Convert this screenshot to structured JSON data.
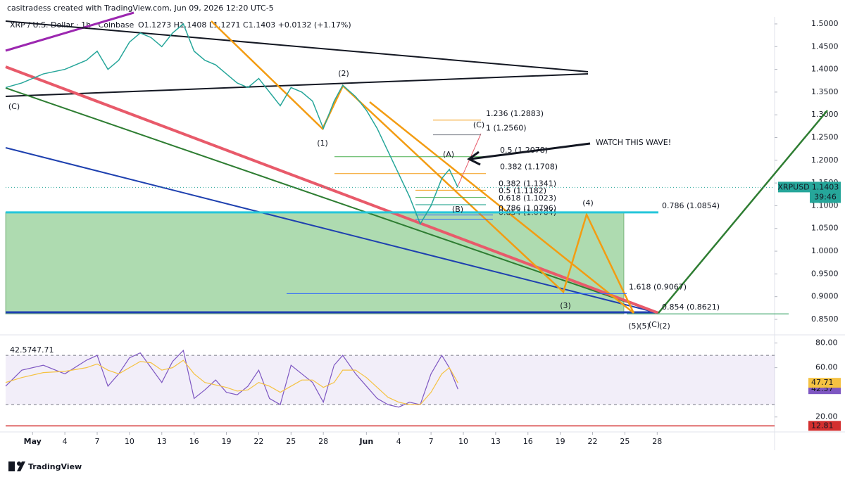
{
  "header": "casitradess created with TradingView.com, Jun 09, 2026 12:20 UTC-5",
  "footer_logo": "TradingView",
  "chart_data": [
    {
      "type": "line",
      "title": "XRP / U.S. Dollar · 1h · Coinbase",
      "ohlc": "O1.1273 H1.1408 L1.1271 C1.1403 +0.0132 (+1.17%)",
      "x": [
        -2.5,
        -1,
        1,
        3,
        5,
        6,
        7,
        8,
        9,
        10,
        11,
        12,
        13,
        14,
        15,
        16,
        17,
        18,
        19,
        20,
        21,
        22,
        23,
        24,
        25,
        26,
        27,
        28,
        28.8,
        30,
        31,
        32,
        33,
        34,
        35,
        36,
        37,
        38,
        38.7,
        39.5
      ],
      "xlim": [
        -2.5,
        68.9
      ],
      "xticks": [
        {
          "value": 0,
          "label": "May"
        },
        {
          "value": 3,
          "label": "4"
        },
        {
          "value": 6,
          "label": "7"
        },
        {
          "value": 9,
          "label": "10"
        },
        {
          "value": 12,
          "label": "13"
        },
        {
          "value": 15,
          "label": "16"
        },
        {
          "value": 18,
          "label": "19"
        },
        {
          "value": 21,
          "label": "22"
        },
        {
          "value": 24,
          "label": "25"
        },
        {
          "value": 27,
          "label": "28"
        },
        {
          "value": 31,
          "label": "Jun"
        },
        {
          "value": 34,
          "label": "4"
        },
        {
          "value": 37,
          "label": "7"
        },
        {
          "value": 40,
          "label": "10"
        },
        {
          "value": 43,
          "label": "13"
        },
        {
          "value": 46,
          "label": "16"
        },
        {
          "value": 49,
          "label": "19"
        },
        {
          "value": 52,
          "label": "22"
        },
        {
          "value": 55,
          "label": "25"
        },
        {
          "value": 58,
          "label": "28"
        }
      ],
      "ylim": [
        0.8252,
        1.5402
      ],
      "yticks": [
        {
          "value": 1.5,
          "label": "1.5000"
        },
        {
          "value": 1.45,
          "label": "1.4500"
        },
        {
          "value": 1.4,
          "label": "1.4000"
        },
        {
          "value": 1.35,
          "label": "1.3500"
        },
        {
          "value": 1.3,
          "label": "1.3000"
        },
        {
          "value": 1.25,
          "label": "1.2500"
        },
        {
          "value": 1.2,
          "label": "1.2000"
        },
        {
          "value": 1.15,
          "label": "1.1500"
        },
        {
          "value": 1.1,
          "label": "1.1000"
        },
        {
          "value": 1.05,
          "label": "1.0500"
        },
        {
          "value": 1.0,
          "label": "1.0000"
        },
        {
          "value": 0.95,
          "label": "0.9500"
        },
        {
          "value": 0.9,
          "label": "0.9000"
        },
        {
          "value": 0.85,
          "label": "0.8500"
        }
      ],
      "series": [
        {
          "name": "XRPUSD",
          "color": "#26a69a",
          "values": [
            1.36,
            1.37,
            1.39,
            1.4,
            1.42,
            1.44,
            1.4,
            1.42,
            1.46,
            1.48,
            1.47,
            1.45,
            1.48,
            1.5,
            1.44,
            1.42,
            1.41,
            1.39,
            1.37,
            1.36,
            1.38,
            1.35,
            1.32,
            1.36,
            1.35,
            1.33,
            1.27,
            1.33,
            1.365,
            1.34,
            1.31,
            1.27,
            1.22,
            1.17,
            1.12,
            1.06,
            1.1,
            1.16,
            1.18,
            1.14
          ]
        }
      ],
      "price_tag": {
        "symbol": "XRPUSD",
        "price": 1.1403,
        "countdown": "39:46"
      },
      "fib_levels": [
        {
          "label": "1.236 (1.2883)",
          "price": 1.2883
        },
        {
          "label": "1 (1.2560)",
          "price": 1.256
        },
        {
          "label": "0.5 (1.2078)",
          "price": 1.2078
        },
        {
          "label": "0.382 (1.1708)",
          "price": 1.1708
        },
        {
          "label": "0.382 (1.1341)",
          "price": 1.1341
        },
        {
          "label": "0.5 (1.1182)",
          "price": 1.1182
        },
        {
          "label": "0.618 (1.1023)",
          "price": 1.1023
        },
        {
          "label": "0.786 (1.0796)",
          "price": 1.0796
        },
        {
          "label": "0.854 (1.0704)",
          "price": 1.0704
        },
        {
          "label": "0.786 (1.0854)",
          "price": 1.0854
        },
        {
          "label": "1.618 (0.9067)",
          "price": 0.9067
        },
        {
          "label": "0.854 (0.8621)",
          "price": 0.8621
        }
      ],
      "wave_labels": [
        {
          "text": "(C)",
          "color": "#e05a5a"
        },
        {
          "text": "(1)",
          "color": "#f39c12"
        },
        {
          "text": "(2)",
          "color": "#f39c12"
        },
        {
          "text": "(A)",
          "color": "#e05a5a"
        },
        {
          "text": "(B)",
          "color": "#e05a5a"
        },
        {
          "text": "(C)",
          "color": "#e05a5a"
        },
        {
          "text": "(3)",
          "color": "#f39c12"
        },
        {
          "text": "(4)",
          "color": "#f39c12"
        },
        {
          "text": "(5)",
          "color": "#f39c12"
        },
        {
          "text": "(5)",
          "color": "#673ab7"
        },
        {
          "text": "(C)",
          "color": "#e05a5a"
        },
        {
          "text": "(2)",
          "color": "#2e7d32"
        }
      ],
      "annotation": "WATCH THIS WAVE!"
    },
    {
      "type": "line",
      "x": [
        -2.5,
        -1,
        1,
        3,
        5,
        6,
        7,
        8,
        9,
        10,
        11,
        12,
        13,
        14,
        15,
        16,
        17,
        18,
        19,
        20,
        21,
        22,
        23,
        24,
        25,
        26,
        27,
        28,
        28.8,
        30,
        31,
        32,
        33,
        34,
        35,
        36,
        37,
        38,
        38.7,
        39.5
      ],
      "xlim": [
        -2.5,
        68.9
      ],
      "ylim": [
        9,
        83.2
      ],
      "yticks": [
        {
          "value": 80,
          "label": "80.00"
        },
        {
          "value": 60,
          "label": "60.00"
        },
        {
          "value": 20,
          "label": "20.00"
        }
      ],
      "bands": [
        30,
        70
      ],
      "series": [
        {
          "color": "#7e57c2",
          "values": [
            45,
            58,
            62,
            55,
            66,
            70,
            45,
            55,
            68,
            72,
            60,
            48,
            65,
            74,
            35,
            42,
            50,
            40,
            38,
            45,
            58,
            35,
            30,
            62,
            55,
            48,
            32,
            62,
            70,
            55,
            45,
            35,
            30,
            28,
            32,
            30,
            55,
            70,
            60,
            42.57
          ]
        },
        {
          "color": "#f5c242",
          "values": [
            48,
            52,
            56,
            57,
            60,
            63,
            58,
            55,
            60,
            65,
            64,
            58,
            60,
            66,
            55,
            48,
            46,
            44,
            41,
            42,
            48,
            45,
            40,
            45,
            50,
            50,
            44,
            48,
            58,
            58,
            52,
            44,
            36,
            32,
            30,
            30,
            40,
            55,
            60,
            47.71
          ]
        }
      ],
      "legend_values": [
        42.57,
        47.71
      ],
      "level": {
        "value": 12.81,
        "color": "#d32f2f"
      }
    }
  ]
}
